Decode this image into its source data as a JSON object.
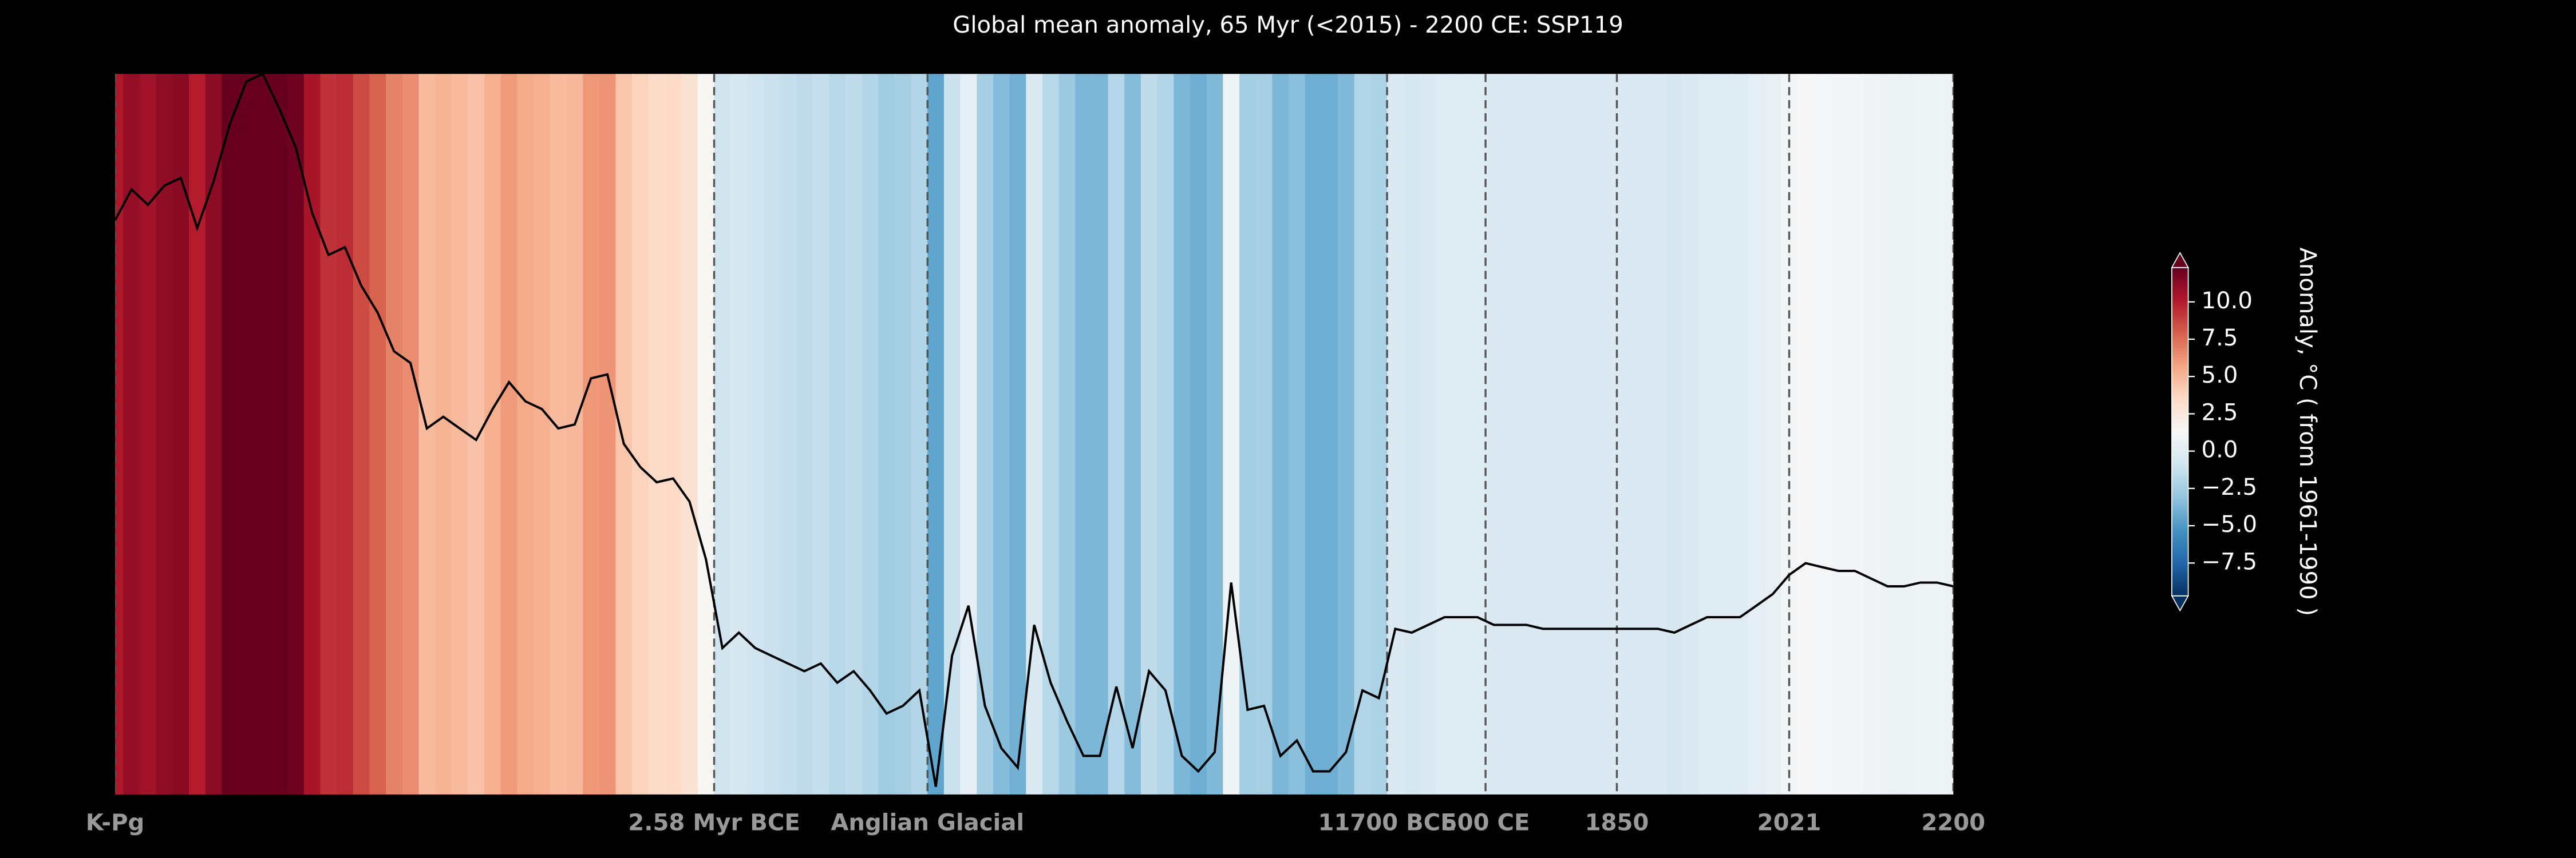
{
  "chart_data": {
    "type": "stripes-line",
    "title": "Global mean anomaly, 65 Myr (<2015) - 2200 CE: SSP119",
    "colorbar_label": "Anomaly, °C ( from 1961-1990 )",
    "x": [
      0,
      2,
      4,
      6,
      8,
      10,
      12,
      14,
      16,
      18,
      20,
      22,
      24,
      26,
      28,
      30,
      32,
      34,
      36,
      38,
      40,
      42,
      44,
      46,
      48,
      50,
      52,
      54,
      56,
      58,
      60,
      62,
      64,
      66,
      68,
      70,
      72,
      74,
      76,
      78,
      80,
      82,
      84,
      86,
      88,
      90,
      92,
      94,
      96,
      98,
      100,
      102,
      104,
      106,
      108,
      110,
      112,
      114,
      116,
      118,
      120,
      122,
      124,
      126,
      128,
      130,
      132,
      134,
      136,
      138,
      140,
      142,
      144,
      146,
      148,
      150,
      152,
      154,
      156,
      158,
      160,
      162,
      164,
      166,
      168,
      170,
      172,
      174,
      176,
      178,
      180,
      182,
      184,
      186,
      188,
      190,
      192,
      194,
      196,
      198,
      200,
      202,
      204,
      206,
      208,
      210,
      212,
      214,
      216,
      218,
      220,
      222,
      224
    ],
    "values": [
      10.2,
      11.0,
      10.6,
      11.1,
      11.3,
      10.0,
      11.2,
      12.7,
      13.8,
      14.0,
      13.1,
      12.1,
      10.4,
      9.3,
      9.5,
      8.5,
      7.8,
      6.8,
      6.5,
      4.8,
      5.1,
      4.8,
      4.5,
      5.3,
      6.0,
      5.5,
      5.3,
      4.8,
      4.9,
      6.1,
      6.2,
      4.4,
      3.8,
      3.4,
      3.5,
      2.9,
      1.4,
      -0.9,
      -0.5,
      -0.9,
      -1.1,
      -1.3,
      -1.5,
      -1.3,
      -1.8,
      -1.5,
      -2.0,
      -2.6,
      -2.4,
      -2.0,
      -4.5,
      -1.1,
      0.2,
      -2.4,
      -3.5,
      -4.0,
      -0.3,
      -1.8,
      -2.8,
      -3.7,
      -3.7,
      -1.9,
      -3.5,
      -1.5,
      -2.0,
      -3.7,
      -4.1,
      -3.6,
      0.8,
      -2.5,
      -2.4,
      -3.7,
      -3.3,
      -4.1,
      -4.1,
      -3.6,
      -2.0,
      -2.2,
      -0.4,
      -0.5,
      -0.3,
      -0.1,
      -0.1,
      -0.1,
      -0.3,
      -0.3,
      -0.3,
      -0.4,
      -0.4,
      -0.4,
      -0.4,
      -0.4,
      -0.4,
      -0.4,
      -0.4,
      -0.5,
      -0.3,
      -0.1,
      -0.1,
      -0.1,
      0.2,
      0.5,
      1.0,
      1.3,
      1.2,
      1.1,
      1.1,
      0.9,
      0.7,
      0.7,
      0.8,
      0.8,
      0.7
    ],
    "xlim": [
      0,
      224
    ],
    "xticks": [
      {
        "value": 0,
        "label": "K-Pg"
      },
      {
        "value": 73,
        "label": "2.58 Myr BCE"
      },
      {
        "value": 99,
        "label": "Anglian Glacial"
      },
      {
        "value": 155,
        "label": "11700 BCE"
      },
      {
        "value": 167,
        "label": "500 CE"
      },
      {
        "value": 183,
        "label": "1850"
      },
      {
        "value": 204,
        "label": "2021"
      },
      {
        "value": 224,
        "label": "2200"
      }
    ],
    "ylim": [
      -4.7,
      14
    ],
    "line_color": "#000000",
    "clim": [
      -9.7,
      12.3
    ],
    "cticks": [
      {
        "value": 10,
        "label": "10.0"
      },
      {
        "value": 7.5,
        "label": "7.5"
      },
      {
        "value": 5,
        "label": "5.0"
      },
      {
        "value": 2.5,
        "label": "2.5"
      },
      {
        "value": 0,
        "label": "0.0"
      },
      {
        "value": -2.5,
        "label": "−2.5"
      },
      {
        "value": -5,
        "label": "−5.0"
      },
      {
        "value": -7.5,
        "label": "−7.5"
      }
    ],
    "colormap": [
      "#053061",
      "#2166ac",
      "#4393c3",
      "#92c5de",
      "#d1e5f0",
      "#f7f7f7",
      "#fddbc7",
      "#f4a582",
      "#d6604d",
      "#b2182b",
      "#67001f"
    ]
  }
}
